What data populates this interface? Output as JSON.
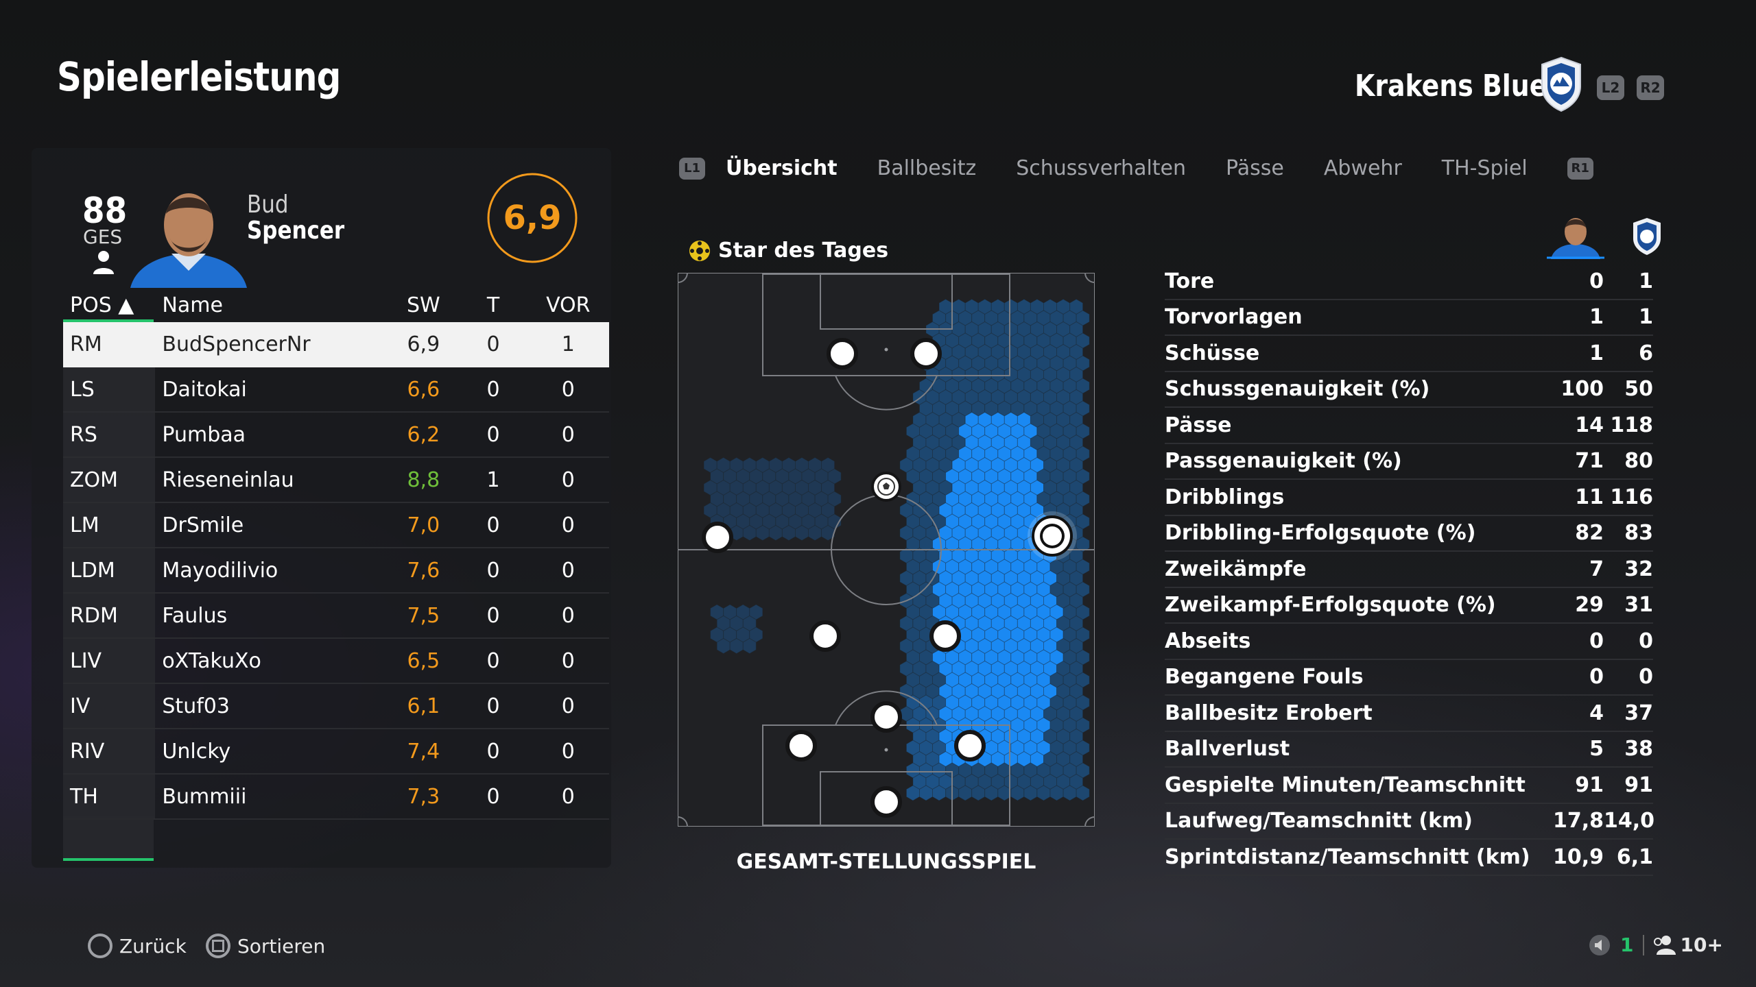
{
  "page": {
    "title": "Spielerleistung"
  },
  "team": {
    "name": "Krakens Blue",
    "l2": "L2",
    "r2": "R2"
  },
  "player_card": {
    "overall": "88",
    "overall_label": "GES",
    "first_name": "Bud",
    "last_name": "Spencer",
    "match_rating": "6,9"
  },
  "table": {
    "headers": {
      "pos": "POS ▲",
      "name": "Name",
      "sw": "SW",
      "t": "T",
      "vor": "VOR"
    },
    "rows": [
      {
        "pos": "RM",
        "name": "BudSpencerNr",
        "sw": "6,9",
        "t": "0",
        "vor": "1",
        "color": "#222222",
        "star": false
      },
      {
        "pos": "LS",
        "name": "Daitokai",
        "sw": "6,6",
        "t": "0",
        "vor": "0",
        "color": "#f39a1c",
        "star": false
      },
      {
        "pos": "RS",
        "name": "Pumbaa",
        "sw": "6,2",
        "t": "0",
        "vor": "0",
        "color": "#f39a1c",
        "star": false
      },
      {
        "pos": "ZOM",
        "name": "Rieseneinlau",
        "sw": "8,8",
        "t": "1",
        "vor": "0",
        "color": "#6fbf3a",
        "star": true
      },
      {
        "pos": "LM",
        "name": "DrSmile",
        "sw": "7,0",
        "t": "0",
        "vor": "0",
        "color": "#f39a1c",
        "star": false
      },
      {
        "pos": "LDM",
        "name": "Mayodilivio",
        "sw": "7,6",
        "t": "0",
        "vor": "0",
        "color": "#f39a1c",
        "star": false
      },
      {
        "pos": "RDM",
        "name": "Faulus",
        "sw": "7,5",
        "t": "0",
        "vor": "0",
        "color": "#f39a1c",
        "star": false
      },
      {
        "pos": "LIV",
        "name": "oXTakuXo",
        "sw": "6,5",
        "t": "0",
        "vor": "0",
        "color": "#f39a1c",
        "star": false
      },
      {
        "pos": "IV",
        "name": "Stuf03",
        "sw": "6,1",
        "t": "0",
        "vor": "0",
        "color": "#f39a1c",
        "star": false
      },
      {
        "pos": "RIV",
        "name": "Unlcky",
        "sw": "7,4",
        "t": "0",
        "vor": "0",
        "color": "#f39a1c",
        "star": false
      },
      {
        "pos": "TH",
        "name": "Bummiii",
        "sw": "7,3",
        "t": "0",
        "vor": "0",
        "color": "#f39a1c",
        "star": false
      }
    ]
  },
  "tabs": {
    "l1": "L1",
    "r1": "R1",
    "items": [
      "Übersicht",
      "Ballbesitz",
      "Schussverhalten",
      "Pässe",
      "Abwehr",
      "TH-Spiel"
    ],
    "active": 0
  },
  "star_of_day": {
    "label": "Star des Tages"
  },
  "pitch": {
    "label": "GESAMT-STELLUNGSSPIEL"
  },
  "stats": [
    {
      "label": "Tore",
      "player": "0",
      "team": "1"
    },
    {
      "label": "Torvorlagen",
      "player": "1",
      "team": "1"
    },
    {
      "label": "Schüsse",
      "player": "1",
      "team": "6"
    },
    {
      "label": "Schussgenauigkeit (%)",
      "player": "100",
      "team": "50"
    },
    {
      "label": "Pässe",
      "player": "14",
      "team": "118"
    },
    {
      "label": "Passgenauigkeit (%)",
      "player": "71",
      "team": "80"
    },
    {
      "label": "Dribblings",
      "player": "11",
      "team": "116"
    },
    {
      "label": "Dribbling-Erfolgsquote (%)",
      "player": "82",
      "team": "83"
    },
    {
      "label": "Zweikämpfe",
      "player": "7",
      "team": "32"
    },
    {
      "label": "Zweikampf-Erfolgsquote (%)",
      "player": "29",
      "team": "31"
    },
    {
      "label": "Abseits",
      "player": "0",
      "team": "0"
    },
    {
      "label": "Begangene Fouls",
      "player": "0",
      "team": "0"
    },
    {
      "label": "Ballbesitz Erobert",
      "player": "4",
      "team": "37"
    },
    {
      "label": "Ballverlust",
      "player": "5",
      "team": "38"
    },
    {
      "label": "Gespielte Minuten/Teamschnitt",
      "player": "91",
      "team": "91"
    },
    {
      "label": "Laufweg/Teamschnitt (km)",
      "player": "17,8",
      "team": "14,0"
    },
    {
      "label": "Sprintdistanz/Teamschnitt (km)",
      "player": "10,9",
      "team": "6,1"
    }
  ],
  "footer": {
    "back": "Zurück",
    "sort": "Sortieren",
    "count_a": "1",
    "count_b": "10+"
  },
  "colors": {
    "accent_green": "#25c36b",
    "rating_orange": "#f39a1c",
    "heat_blue": "#1a8fff"
  }
}
